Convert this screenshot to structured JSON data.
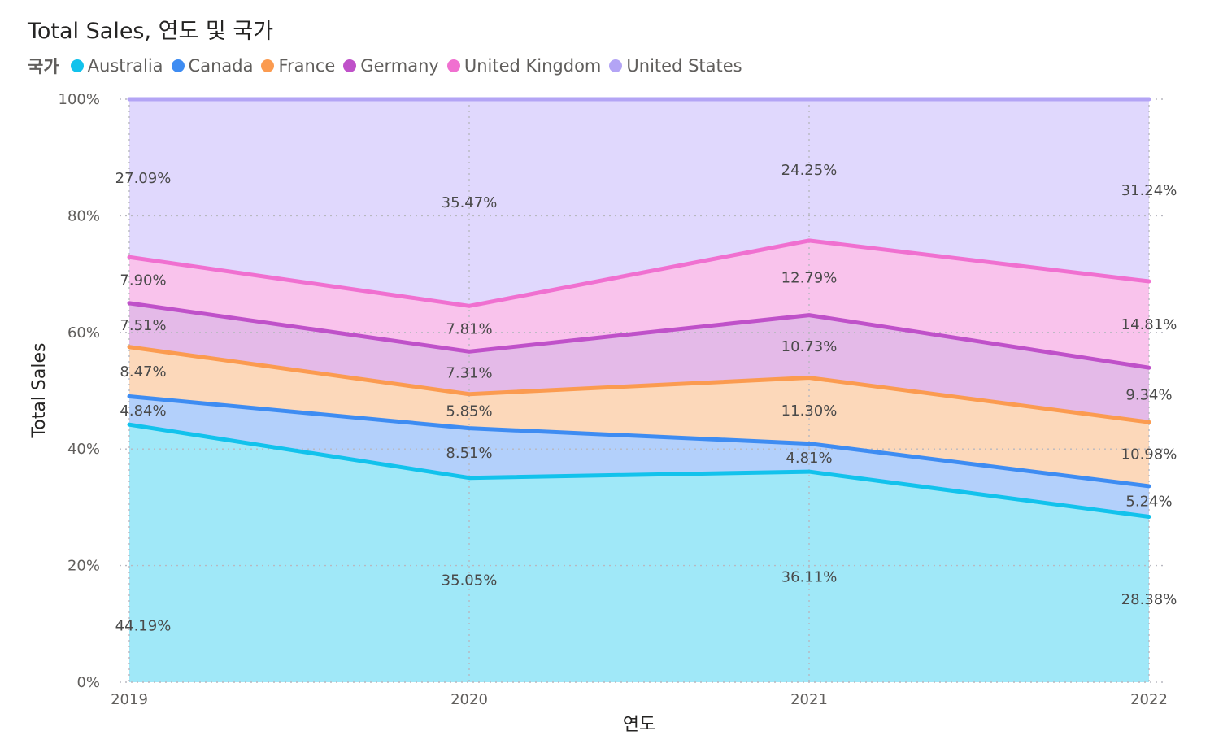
{
  "chart_data": {
    "type": "area",
    "stacked": "100%",
    "title": "Total Sales, 연도 및 국가",
    "legend_title": "국가",
    "xlabel": "연도",
    "ylabel": "Total Sales",
    "categories": [
      "2019",
      "2020",
      "2021",
      "2022"
    ],
    "y_ticks": [
      "0%",
      "20%",
      "40%",
      "60%",
      "80%",
      "100%"
    ],
    "ylim": [
      0,
      100
    ],
    "grid": true,
    "series": [
      {
        "name": "Australia",
        "color": "#12C2EC",
        "fill": "#A0E8F8",
        "values": [
          44.19,
          35.05,
          36.11,
          28.38
        ],
        "labels": [
          "44.19%",
          "35.05%",
          "36.11%",
          "28.38%"
        ]
      },
      {
        "name": "Canada",
        "color": "#3E8CF2",
        "fill": "#B3D0FB",
        "values": [
          4.84,
          8.51,
          4.81,
          5.24
        ],
        "labels": [
          "4.84%",
          "8.51%",
          "4.81%",
          "5.24%"
        ]
      },
      {
        "name": "France",
        "color": "#FB9B50",
        "fill": "#FCD8BA",
        "values": [
          8.47,
          5.85,
          11.3,
          10.98
        ],
        "labels": [
          "8.47%",
          "5.85%",
          "11.30%",
          "10.98%"
        ]
      },
      {
        "name": "Germany",
        "color": "#BF51C9",
        "fill": "#E4BAE8",
        "values": [
          7.51,
          7.31,
          10.73,
          9.34
        ],
        "labels": [
          "7.51%",
          "7.31%",
          "10.73%",
          "9.34%"
        ]
      },
      {
        "name": "United Kingdom",
        "color": "#F070D0",
        "fill": "#F9C3EC",
        "values": [
          7.9,
          7.81,
          12.79,
          14.81
        ],
        "labels": [
          "7.90%",
          "7.81%",
          "12.79%",
          "14.81%"
        ]
      },
      {
        "name": "United States",
        "color": "#B3A4F5",
        "fill": "#E0D8FD",
        "values": [
          27.09,
          35.47,
          24.25,
          31.24
        ],
        "labels": [
          "27.09%",
          "35.47%",
          "24.25%",
          "31.24%"
        ]
      }
    ]
  }
}
